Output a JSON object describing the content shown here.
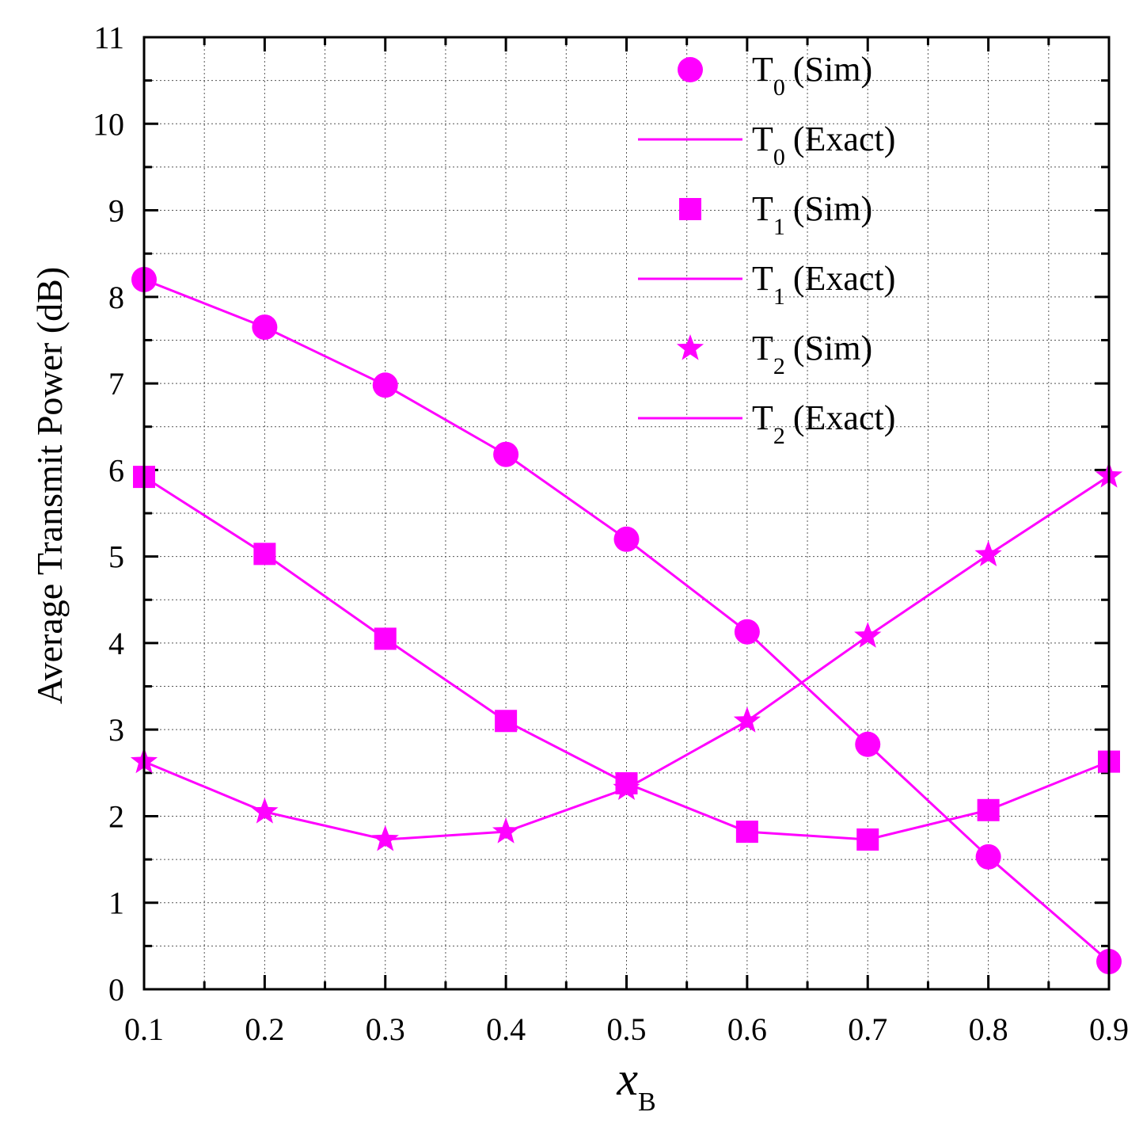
{
  "chart_data": {
    "type": "line",
    "title": "",
    "xlabel": "x",
    "xlabel_sub": "B",
    "ylabel": "Average Transmit Power (dB)",
    "xlim": [
      0.1,
      0.9
    ],
    "ylim": [
      0,
      11
    ],
    "x_ticks": [
      "0.1",
      "0.2",
      "0.3",
      "0.4",
      "0.5",
      "0.6",
      "0.7",
      "0.8",
      "0.9"
    ],
    "y_ticks": [
      "0",
      "1",
      "2",
      "3",
      "4",
      "5",
      "6",
      "7",
      "8",
      "9",
      "10",
      "11"
    ],
    "grid": true,
    "color": "#ff00ff",
    "legend_position": "top-right",
    "x": [
      0.1,
      0.2,
      0.3,
      0.4,
      0.5,
      0.6,
      0.7,
      0.8,
      0.9
    ],
    "series": [
      {
        "name": "T_0",
        "key": "t0",
        "marker": "circle",
        "values": [
          8.2,
          7.65,
          6.98,
          6.18,
          5.2,
          4.13,
          2.83,
          1.53,
          0.32
        ]
      },
      {
        "name": "T_1",
        "key": "t1",
        "marker": "square",
        "values": [
          5.92,
          5.03,
          4.05,
          3.1,
          2.38,
          1.82,
          1.73,
          2.07,
          2.63
        ]
      },
      {
        "name": "T_2",
        "key": "t2",
        "marker": "star",
        "values": [
          2.63,
          2.05,
          1.73,
          1.82,
          2.32,
          3.1,
          4.08,
          5.02,
          5.93
        ]
      }
    ],
    "legend": [
      {
        "base": "T",
        "sub": "0",
        "suffix": "(Sim)",
        "kind": "marker",
        "marker": "circle"
      },
      {
        "base": "T",
        "sub": "0",
        "suffix": "(Exact)",
        "kind": "line"
      },
      {
        "base": "T",
        "sub": "1",
        "suffix": "(Sim)",
        "kind": "marker",
        "marker": "square"
      },
      {
        "base": "T",
        "sub": "1",
        "suffix": "(Exact)",
        "kind": "line"
      },
      {
        "base": "T",
        "sub": "2",
        "suffix": "(Sim)",
        "kind": "marker",
        "marker": "star"
      },
      {
        "base": "T",
        "sub": "2",
        "suffix": "(Exact)",
        "kind": "line"
      }
    ]
  }
}
